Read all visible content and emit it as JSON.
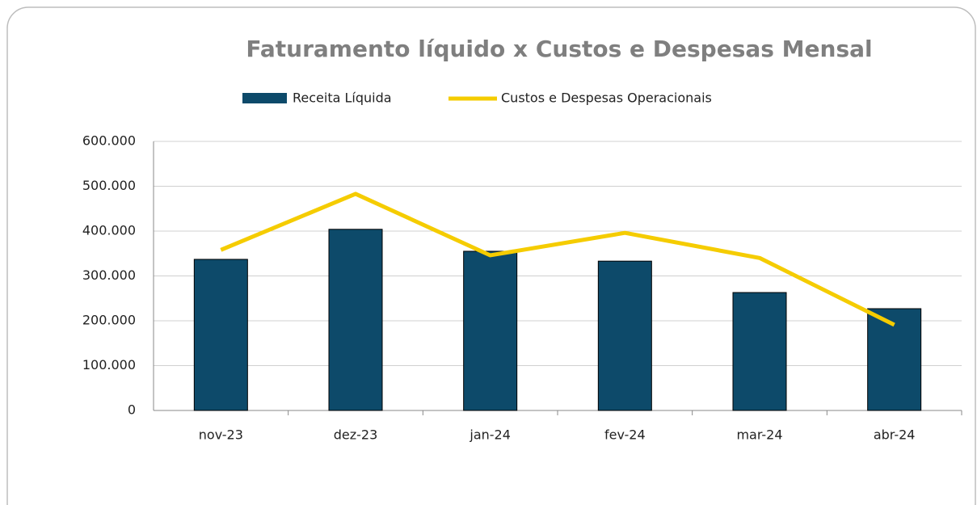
{
  "chart_data": {
    "type": "combo",
    "title": "Faturamento líquido x Custos e Despesas Mensal",
    "categories": [
      "nov-23",
      "dez-23",
      "jan-24",
      "fev-24",
      "mar-24",
      "abr-24"
    ],
    "series": [
      {
        "name": "Receita Líquida",
        "type": "bar",
        "color": "#0d4a6a",
        "values": [
          337000,
          404000,
          355000,
          333000,
          263000,
          227000
        ]
      },
      {
        "name": "Custos e Despesas Operacionais",
        "type": "line",
        "color": "#f5cc00",
        "values": [
          358000,
          483000,
          346000,
          396000,
          340000,
          191000
        ]
      }
    ],
    "ylim": [
      0,
      600000
    ],
    "yticks": [
      0,
      {
        "value": 100000,
        "label": "100.000"
      },
      {
        "value": 200000,
        "label": "200.000"
      },
      {
        "value": 300000,
        "label": "300.000"
      },
      {
        "value": 400000,
        "label": "400.000"
      },
      {
        "value": 500000,
        "label": "500.000"
      },
      {
        "value": 600000,
        "label": "600.000"
      }
    ],
    "grid": true
  }
}
